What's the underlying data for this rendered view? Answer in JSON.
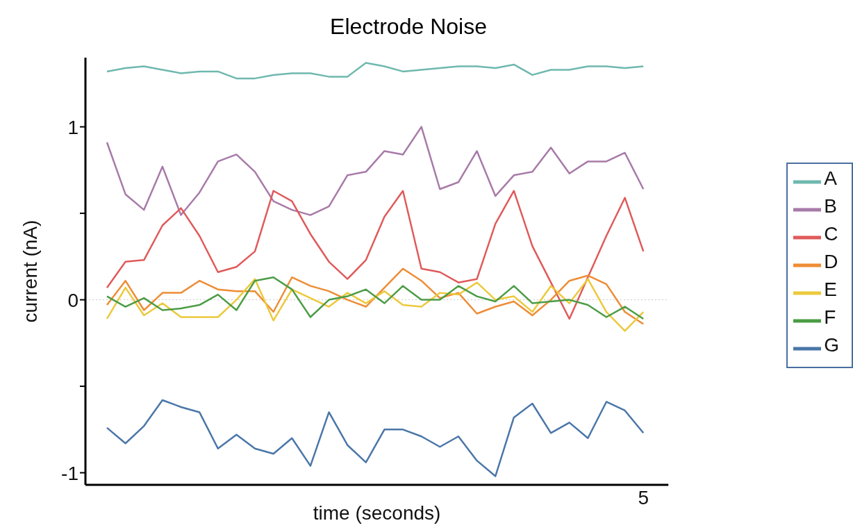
{
  "chart_data": {
    "type": "line",
    "title": "Electrode Noise",
    "xlabel": "time (seconds)",
    "ylabel": "current (nA)",
    "categories": [
      null,
      null,
      null,
      null,
      null,
      null,
      null,
      null,
      null,
      null,
      null,
      null,
      null,
      null,
      null,
      null,
      null,
      null,
      null,
      null,
      null,
      null,
      null,
      null,
      null,
      null,
      null,
      null,
      null,
      "5"
    ],
    "ylim": [
      -1.07,
      1.4
    ],
    "yticks": [
      {
        "value": -1,
        "label": "-1"
      },
      {
        "value": -0.5,
        "label": null
      },
      {
        "value": 0,
        "label": "0"
      },
      {
        "value": 0.5,
        "label": null
      },
      {
        "value": 1,
        "label": "1"
      }
    ],
    "line_style": "solid",
    "legend": "right",
    "ref_lines": [
      {
        "axis": "y",
        "value": 0,
        "color": "#c8c8c8",
        "line_style": "dotted"
      }
    ],
    "series": [
      {
        "name": "A",
        "color": "#6fb8ae",
        "values": [
          1.32,
          1.34,
          1.35,
          1.33,
          1.31,
          1.32,
          1.32,
          1.28,
          1.28,
          1.3,
          1.31,
          1.31,
          1.29,
          1.29,
          1.37,
          1.35,
          1.32,
          1.33,
          1.34,
          1.35,
          1.35,
          1.34,
          1.36,
          1.3,
          1.33,
          1.33,
          1.35,
          1.35,
          1.34,
          1.35
        ]
      },
      {
        "name": "B",
        "color": "#a77aa8",
        "values": [
          0.91,
          0.61,
          0.52,
          0.77,
          0.49,
          0.62,
          0.8,
          0.84,
          0.74,
          0.57,
          0.52,
          0.49,
          0.54,
          0.72,
          0.74,
          0.86,
          0.84,
          1.0,
          0.64,
          0.68,
          0.86,
          0.6,
          0.72,
          0.74,
          0.88,
          0.73,
          0.8,
          0.8,
          0.85,
          0.64
        ]
      },
      {
        "name": "C",
        "color": "#e05a5a",
        "values": [
          0.07,
          0.22,
          0.23,
          0.43,
          0.53,
          0.37,
          0.16,
          0.19,
          0.28,
          0.63,
          0.57,
          0.38,
          0.22,
          0.12,
          0.23,
          0.48,
          0.63,
          0.18,
          0.16,
          0.1,
          0.12,
          0.44,
          0.63,
          0.31,
          0.1,
          -0.11,
          0.13,
          0.37,
          0.59,
          0.28
        ]
      },
      {
        "name": "D",
        "color": "#ee8c35",
        "values": [
          -0.03,
          0.11,
          -0.06,
          0.04,
          0.04,
          0.11,
          0.06,
          0.05,
          0.05,
          -0.07,
          0.13,
          0.08,
          0.05,
          0.0,
          -0.04,
          0.07,
          0.18,
          0.11,
          0.01,
          0.04,
          -0.08,
          -0.04,
          -0.01,
          -0.09,
          0.0,
          0.11,
          0.14,
          0.09,
          -0.07,
          -0.14
        ]
      },
      {
        "name": "E",
        "color": "#ecc93c",
        "values": [
          -0.11,
          0.07,
          -0.09,
          -0.02,
          -0.1,
          -0.1,
          -0.1,
          0.0,
          0.12,
          -0.12,
          0.06,
          0.01,
          -0.04,
          0.04,
          -0.02,
          0.05,
          -0.03,
          -0.04,
          0.04,
          0.03,
          0.1,
          0.0,
          0.02,
          -0.07,
          0.08,
          -0.02,
          0.12,
          -0.07,
          -0.18,
          -0.07
        ]
      },
      {
        "name": "F",
        "color": "#4c9c45",
        "values": [
          0.02,
          -0.04,
          0.01,
          -0.06,
          -0.05,
          -0.03,
          0.03,
          -0.06,
          0.11,
          0.13,
          0.06,
          -0.1,
          0.0,
          0.02,
          0.06,
          -0.02,
          0.08,
          0.0,
          0.0,
          0.08,
          0.02,
          -0.01,
          0.08,
          -0.02,
          -0.01,
          0.0,
          -0.03,
          -0.1,
          -0.04,
          -0.11
        ]
      },
      {
        "name": "G",
        "color": "#4a76a8",
        "values": [
          -0.74,
          -0.83,
          -0.73,
          -0.58,
          -0.62,
          -0.65,
          -0.86,
          -0.78,
          -0.86,
          -0.89,
          -0.8,
          -0.96,
          -0.65,
          -0.84,
          -0.94,
          -0.75,
          -0.75,
          -0.79,
          -0.85,
          -0.79,
          -0.93,
          -1.02,
          -0.68,
          -0.6,
          -0.77,
          -0.71,
          -0.8,
          -0.59,
          -0.64,
          -0.77
        ]
      }
    ]
  }
}
